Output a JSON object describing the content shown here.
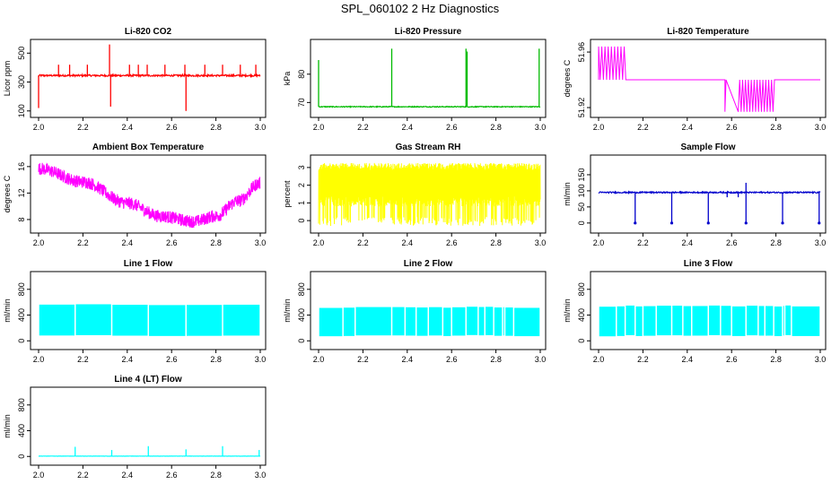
{
  "page": {
    "title": "SPL_060102  2 Hz Diagnostics"
  },
  "chart_data": [
    {
      "type": "line",
      "title": "Li-820 CO2",
      "ylabel": "Licor ppm",
      "color": "#ff0000",
      "xlim": [
        2.0,
        3.0
      ],
      "ylim": [
        80,
        570
      ],
      "xticks": [
        "2.0",
        "2.2",
        "2.4",
        "2.6",
        "2.8",
        "3.0"
      ],
      "yticks": [
        100,
        300,
        500
      ],
      "ytick_labels": [
        "100",
        "300",
        "500"
      ],
      "baseline": 345,
      "noise": 12,
      "spikes": [
        {
          "x": 2.0,
          "y": 120
        },
        {
          "x": 2.09,
          "y": 420
        },
        {
          "x": 2.14,
          "y": 420
        },
        {
          "x": 2.22,
          "y": 420
        },
        {
          "x": 2.32,
          "y": 560
        },
        {
          "x": 2.325,
          "y": 130
        },
        {
          "x": 2.41,
          "y": 420
        },
        {
          "x": 2.45,
          "y": 420
        },
        {
          "x": 2.49,
          "y": 420
        },
        {
          "x": 2.57,
          "y": 420
        },
        {
          "x": 2.66,
          "y": 420
        },
        {
          "x": 2.665,
          "y": 100
        },
        {
          "x": 2.75,
          "y": 420
        },
        {
          "x": 2.83,
          "y": 420
        },
        {
          "x": 2.91,
          "y": 420
        },
        {
          "x": 2.98,
          "y": 420
        }
      ]
    },
    {
      "type": "line",
      "title": "Li-820 Pressure",
      "ylabel": "kPa",
      "color": "#00bb00",
      "xlim": [
        2.0,
        3.0
      ],
      "ylim": [
        66,
        91
      ],
      "xticks": [
        "2.0",
        "2.2",
        "2.4",
        "2.6",
        "2.8",
        "3.0"
      ],
      "yticks": [
        70,
        80
      ],
      "ytick_labels": [
        "70",
        "80"
      ],
      "baseline": 68.5,
      "noise": 0.3,
      "spikes": [
        {
          "x": 2.0,
          "y": 85
        },
        {
          "x": 2.33,
          "y": 89
        },
        {
          "x": 2.665,
          "y": 89
        },
        {
          "x": 2.67,
          "y": 88
        },
        {
          "x": 2.995,
          "y": 89
        }
      ]
    },
    {
      "type": "line",
      "title": "Li-820 Temperature",
      "ylabel": "degrees C",
      "color": "#ff00ff",
      "xlim": [
        2.0,
        3.0
      ],
      "ylim": [
        51.9155,
        51.9665
      ],
      "xticks": [
        "2.0",
        "2.2",
        "2.4",
        "2.6",
        "2.8",
        "3.0"
      ],
      "yticks": [
        51.92,
        51.96
      ],
      "ytick_labels": [
        "51.92",
        "51.96"
      ],
      "baseline": 51.94,
      "noise": 0,
      "high": 51.964,
      "low": 51.917,
      "hi_band": [
        2.0,
        2.13
      ],
      "lo_band": [
        2.57,
        2.8
      ]
    },
    {
      "type": "line",
      "title": "Ambient Box Temperature",
      "ylabel": "degrees C",
      "color": "#ff00ff",
      "xlim": [
        2.0,
        3.0
      ],
      "ylim": [
        6.5,
        17.2
      ],
      "xticks": [
        "2.0",
        "2.2",
        "2.4",
        "2.6",
        "2.8",
        "3.0"
      ],
      "yticks": [
        8,
        12,
        16
      ],
      "ytick_labels": [
        "8",
        "12",
        "16"
      ],
      "curve": [
        {
          "x": 2.0,
          "y": 15.7
        },
        {
          "x": 2.2,
          "y": 13.7
        },
        {
          "x": 2.4,
          "y": 10.5
        },
        {
          "x": 2.55,
          "y": 8.5
        },
        {
          "x": 2.7,
          "y": 7.7
        },
        {
          "x": 2.8,
          "y": 8.5
        },
        {
          "x": 2.9,
          "y": 10.8
        },
        {
          "x": 3.0,
          "y": 13.5
        }
      ],
      "noise": 1.2
    },
    {
      "type": "line",
      "title": "Gas Stream RH",
      "ylabel": "percent",
      "color": "#ffff00",
      "xlim": [
        2.0,
        3.0
      ],
      "ylim": [
        -0.5,
        3.5
      ],
      "xticks": [
        "2.0",
        "2.2",
        "2.4",
        "2.6",
        "2.8",
        "3.0"
      ],
      "yticks": [
        0,
        1,
        2,
        3
      ],
      "ytick_labels": [
        "0",
        "1",
        "2",
        "3"
      ],
      "band_top": 3.05,
      "band_bottom_min": -0.3,
      "band_bottom_typ": 0.8
    },
    {
      "type": "line",
      "title": "Sample Flow",
      "ylabel": "ml/min",
      "color": "#0000cc",
      "xlim": [
        2.0,
        3.0
      ],
      "ylim": [
        -20,
        200
      ],
      "xticks": [
        "2.0",
        "2.2",
        "2.4",
        "2.6",
        "2.8",
        "3.0"
      ],
      "yticks": [
        0,
        50,
        100,
        150
      ],
      "ytick_labels": [
        "0",
        "50",
        "100",
        "150"
      ],
      "baseline": 95,
      "noise": 4,
      "spikes": [
        {
          "x": 2.165,
          "y": 0
        },
        {
          "x": 2.33,
          "y": 0
        },
        {
          "x": 2.495,
          "y": 0
        },
        {
          "x": 2.665,
          "y": 0
        },
        {
          "x": 2.83,
          "y": 0
        },
        {
          "x": 2.995,
          "y": 0
        },
        {
          "x": 2.665,
          "y": 125
        },
        {
          "x": 2.58,
          "y": 80
        },
        {
          "x": 2.63,
          "y": 80
        }
      ]
    },
    {
      "type": "area",
      "title": "Line 1 Flow",
      "ylabel": "ml/min",
      "color": "#00ffff",
      "xlim": [
        2.0,
        3.0
      ],
      "ylim": [
        -80,
        1020
      ],
      "xticks": [
        "2.0",
        "2.2",
        "2.4",
        "2.6",
        "2.8",
        "3.0"
      ],
      "yticks": [
        0,
        400,
        800
      ],
      "ytick_labels": [
        "0",
        "400",
        "800"
      ],
      "band_top": 560,
      "band_bottom": 80,
      "gaps": [
        2.165,
        2.33,
        2.495,
        2.665,
        2.83
      ]
    },
    {
      "type": "area",
      "title": "Line 2 Flow",
      "ylabel": "ml/min",
      "color": "#00ffff",
      "xlim": [
        2.0,
        3.0
      ],
      "ylim": [
        -80,
        1020
      ],
      "xticks": [
        "2.0",
        "2.2",
        "2.4",
        "2.6",
        "2.8",
        "3.0"
      ],
      "yticks": [
        0,
        400,
        800
      ],
      "ytick_labels": [
        "0",
        "400",
        "800"
      ],
      "band_top": 520,
      "band_bottom": 80,
      "gaps": [
        2.165,
        2.33,
        2.495,
        2.665,
        2.83,
        2.11,
        2.39,
        2.44,
        2.56,
        2.6,
        2.72,
        2.75,
        2.79,
        2.84,
        2.88
      ]
    },
    {
      "type": "area",
      "title": "Line 3 Flow",
      "ylabel": "ml/min",
      "color": "#00ffff",
      "xlim": [
        2.0,
        3.0
      ],
      "ylim": [
        -80,
        1020
      ],
      "xticks": [
        "2.0",
        "2.2",
        "2.4",
        "2.6",
        "2.8",
        "3.0"
      ],
      "yticks": [
        0,
        400,
        800
      ],
      "ytick_labels": [
        "0",
        "400",
        "800"
      ],
      "band_top": 540,
      "band_bottom": 80,
      "gaps": [
        2.165,
        2.33,
        2.495,
        2.665,
        2.83,
        2.08,
        2.12,
        2.2,
        2.26,
        2.38,
        2.42,
        2.55,
        2.6,
        2.72,
        2.75,
        2.79,
        2.84,
        2.87
      ]
    },
    {
      "type": "line",
      "title": "Line 4 (LT) Flow",
      "ylabel": "ml/min",
      "color": "#00ffff",
      "xlim": [
        2.0,
        3.0
      ],
      "ylim": [
        -80,
        1020
      ],
      "xticks": [
        "2.0",
        "2.2",
        "2.4",
        "2.6",
        "2.8",
        "3.0"
      ],
      "yticks": [
        0,
        400,
        800
      ],
      "ytick_labels": [
        "0",
        "400",
        "800"
      ],
      "baseline": 5,
      "noise": 3,
      "spikes": [
        {
          "x": 2.165,
          "y": 150
        },
        {
          "x": 2.33,
          "y": 100
        },
        {
          "x": 2.495,
          "y": 160
        },
        {
          "x": 2.665,
          "y": 110
        },
        {
          "x": 2.83,
          "y": 160
        },
        {
          "x": 2.995,
          "y": 100
        }
      ]
    }
  ]
}
